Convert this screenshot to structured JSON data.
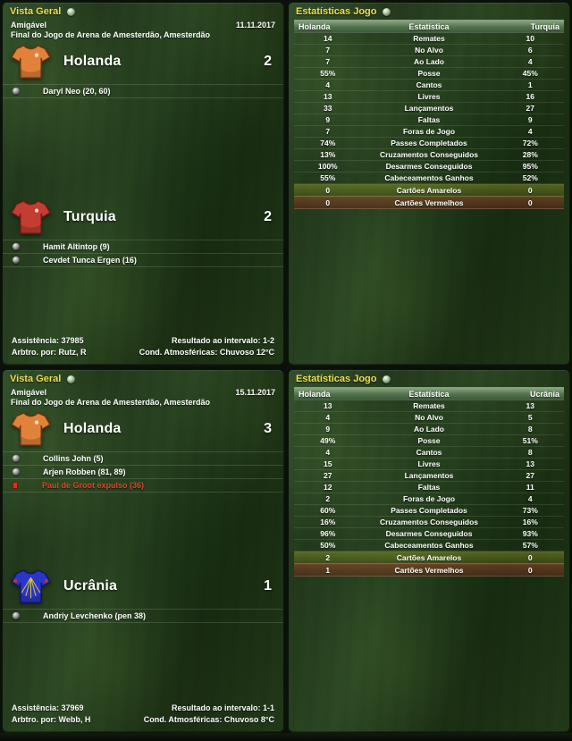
{
  "ui": {
    "overview_title": "Vista Geral",
    "stats_title": "Estatísticas Jogo",
    "stats_center_label": "Estatística"
  },
  "colors": {
    "title_yellow": "#f2df4e",
    "sent_off_text": "#d8472b",
    "yellow_card_row": "#8b9b2d",
    "red_card_row": "#96482a"
  },
  "matches": [
    {
      "competition": "Amigável",
      "date": "11.11.2017",
      "venue": "Final do Jogo de Arena de Amesterdão, Amesterdão",
      "home": {
        "name": "Holanda",
        "score": "2",
        "kit": {
          "body": "#e2823a",
          "trim": "#69330f",
          "badge": "#f5f0e6"
        },
        "events": [
          {
            "type": "goal",
            "text": "Daryl Neo (20, 60)"
          }
        ]
      },
      "away": {
        "name": "Turquia",
        "score": "2",
        "kit": {
          "body": "#c33d33",
          "trim": "#711a12",
          "badge": "#f0e8e0"
        },
        "events": [
          {
            "type": "goal",
            "text": "Hamit Altintop (9)"
          },
          {
            "type": "goal",
            "text": "Cevdet Tunca Ergen (16)"
          }
        ]
      },
      "attendance": "Assistência: 37985",
      "referee": "Arbtro. por: Rutz, R",
      "halftime": "Resultado ao intervalo: 1-2",
      "weather": "Cond. Atmosféricas: Chuvoso 12°C",
      "stats": {
        "home_col": "Holanda",
        "away_col": "Turquia",
        "rows": [
          {
            "home": "14",
            "label": "Remates",
            "away": "10"
          },
          {
            "home": "7",
            "label": "No Alvo",
            "away": "6"
          },
          {
            "home": "7",
            "label": "Ao Lado",
            "away": "4"
          },
          {
            "home": "55%",
            "label": "Posse",
            "away": "45%"
          },
          {
            "home": "4",
            "label": "Cantos",
            "away": "1"
          },
          {
            "home": "13",
            "label": "Livres",
            "away": "16"
          },
          {
            "home": "33",
            "label": "Lançamentos",
            "away": "27"
          },
          {
            "home": "9",
            "label": "Faltas",
            "away": "9"
          },
          {
            "home": "7",
            "label": "Foras de Jogo",
            "away": "4"
          },
          {
            "home": "74%",
            "label": "Passes Completados",
            "away": "72%"
          },
          {
            "home": "13%",
            "label": "Cruzamentos Conseguidos",
            "away": "28%"
          },
          {
            "home": "100%",
            "label": "Desarmes Conseguidos",
            "away": "95%"
          },
          {
            "home": "55%",
            "label": "Cabeceamentos Ganhos",
            "away": "52%"
          },
          {
            "home": "0",
            "label": "Cartões Amarelos",
            "away": "0",
            "highlight": "yellow"
          },
          {
            "home": "0",
            "label": "Cartões Vermelhos",
            "away": "0",
            "highlight": "red"
          }
        ]
      }
    },
    {
      "competition": "Amigável",
      "date": "15.11.2017",
      "venue": "Final do Jogo de Arena de Amesterdão, Amesterdão",
      "home": {
        "name": "Holanda",
        "score": "3",
        "kit": {
          "body": "#e2823a",
          "trim": "#69330f",
          "badge": "#f5f0e6"
        },
        "events": [
          {
            "type": "goal",
            "text": "Collins John (5)"
          },
          {
            "type": "goal",
            "text": "Arjen Robben (81, 89)"
          },
          {
            "type": "red_card",
            "text": "Paul de Groot expulso (36)"
          }
        ]
      },
      "away": {
        "name": "Ucrânia",
        "score": "1",
        "kit": {
          "body": "#2a36c9",
          "trim": "#0d1668",
          "accent": "#e8d62a",
          "patch": "#c03328"
        },
        "events": [
          {
            "type": "goal",
            "text": "Andriy Levchenko (pen 38)"
          }
        ]
      },
      "attendance": "Assistência: 37969",
      "referee": "Arbtro. por: Webb, H",
      "halftime": "Resultado ao intervalo: 1-1",
      "weather": "Cond. Atmosféricas: Chuvoso 8°C",
      "stats": {
        "home_col": "Holanda",
        "away_col": "Ucrânia",
        "rows": [
          {
            "home": "13",
            "label": "Remates",
            "away": "13"
          },
          {
            "home": "4",
            "label": "No Alvo",
            "away": "5"
          },
          {
            "home": "9",
            "label": "Ao Lado",
            "away": "8"
          },
          {
            "home": "49%",
            "label": "Posse",
            "away": "51%"
          },
          {
            "home": "4",
            "label": "Cantos",
            "away": "8"
          },
          {
            "home": "15",
            "label": "Livres",
            "away": "13"
          },
          {
            "home": "27",
            "label": "Lançamentos",
            "away": "27"
          },
          {
            "home": "12",
            "label": "Faltas",
            "away": "11"
          },
          {
            "home": "2",
            "label": "Foras de Jogo",
            "away": "4"
          },
          {
            "home": "60%",
            "label": "Passes Completados",
            "away": "73%"
          },
          {
            "home": "16%",
            "label": "Cruzamentos Conseguidos",
            "away": "16%"
          },
          {
            "home": "96%",
            "label": "Desarmes Conseguidos",
            "away": "93%"
          },
          {
            "home": "50%",
            "label": "Cabeceamentos Ganhos",
            "away": "57%"
          },
          {
            "home": "2",
            "label": "Cartões Amarelos",
            "away": "0",
            "highlight": "yellow"
          },
          {
            "home": "1",
            "label": "Cartões Vermelhos",
            "away": "0",
            "highlight": "red"
          }
        ]
      }
    }
  ]
}
